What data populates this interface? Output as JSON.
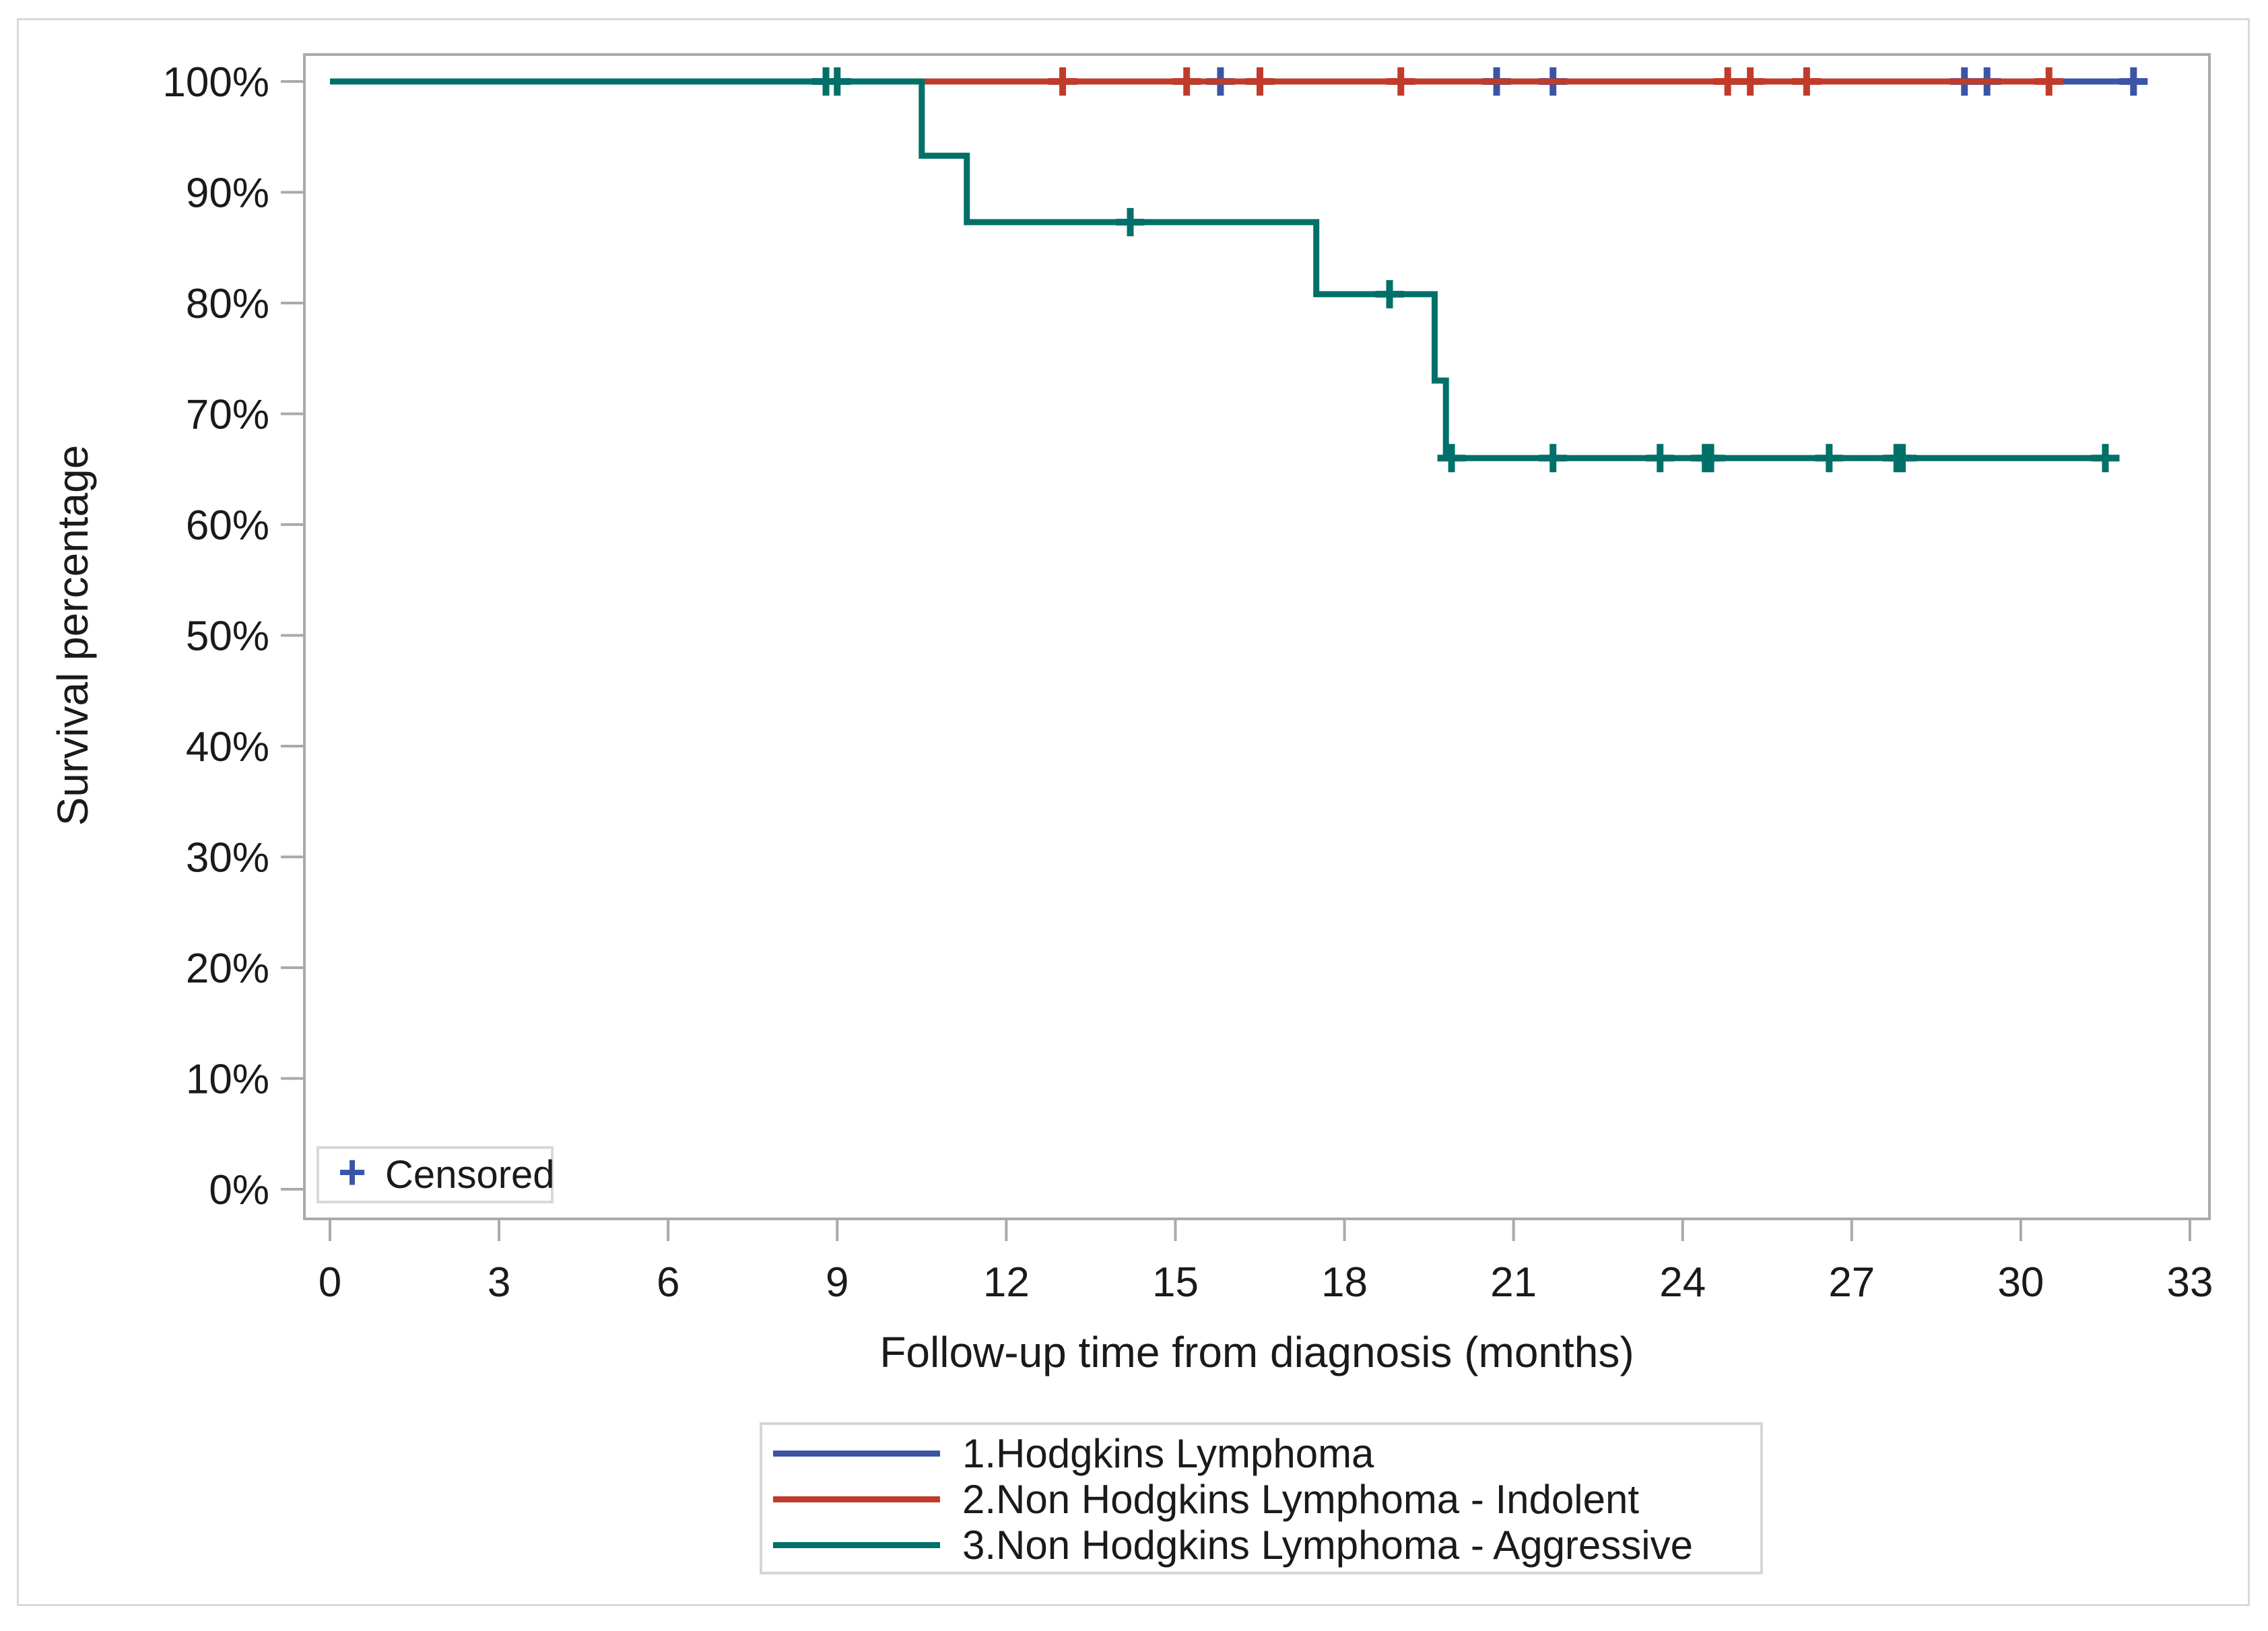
{
  "figure": {
    "background": "#ffffff",
    "outer_border_color": "#d9d9d9",
    "plot_border_color": "#a6abad",
    "tick_color": "#a6abad",
    "text_color": "#1a1a1a"
  },
  "y_axis": {
    "title": "Survival percentage",
    "tick_labels": [
      "100%",
      "90%",
      "80%",
      "70%",
      "60%",
      "50%",
      "40%",
      "30%",
      "20%",
      "10%",
      "0%"
    ],
    "tick_values": [
      100,
      90,
      80,
      70,
      60,
      50,
      40,
      30,
      20,
      10,
      0
    ],
    "min": 0,
    "max": 100
  },
  "x_axis": {
    "title": "Follow-up time from diagnosis (months)",
    "tick_labels": [
      "0",
      "3",
      "6",
      "9",
      "12",
      "15",
      "18",
      "21",
      "24",
      "27",
      "30",
      "33"
    ],
    "tick_values": [
      0,
      3,
      6,
      9,
      12,
      15,
      18,
      21,
      24,
      27,
      30,
      33
    ],
    "min": 0,
    "max": 33
  },
  "censored_legend": {
    "marker": "+",
    "marker_color": "#3b54a6",
    "label": "Censored"
  },
  "legend": {
    "position": "bottom-center",
    "entries": [
      {
        "label": "1.Hodgkins Lymphoma",
        "color": "#3b54a6"
      },
      {
        "label": "2.Non Hodgkins Lymphoma - Indolent",
        "color": "#c13b2b"
      },
      {
        "label": "3.Non Hodgkins Lymphoma - Aggressive",
        "color": "#007069"
      }
    ]
  },
  "chart_data": {
    "type": "line",
    "subtype": "kaplan-meier-step",
    "title": "",
    "xlabel": "Follow-up time from diagnosis (months)",
    "ylabel": "Survival percentage",
    "xlim": [
      0,
      33
    ],
    "ylim": [
      0,
      100
    ],
    "grid": false,
    "series": [
      {
        "name": "1.Hodgkins Lymphoma",
        "color": "#3b54a6",
        "steps": [
          {
            "t": 0,
            "s": 100
          },
          {
            "t": 32.0,
            "s": 100
          }
        ],
        "censored": [
          {
            "t": 15.8,
            "s": 100
          },
          {
            "t": 20.7,
            "s": 100
          },
          {
            "t": 21.7,
            "s": 100
          },
          {
            "t": 29.0,
            "s": 100
          },
          {
            "t": 29.4,
            "s": 100
          },
          {
            "t": 32.0,
            "s": 100
          }
        ]
      },
      {
        "name": "2.Non Hodgkins Lymphoma - Indolent",
        "color": "#c13b2b",
        "steps": [
          {
            "t": 0,
            "s": 100
          },
          {
            "t": 30.5,
            "s": 100
          }
        ],
        "censored": [
          {
            "t": 13.0,
            "s": 100
          },
          {
            "t": 15.2,
            "s": 100
          },
          {
            "t": 16.5,
            "s": 100
          },
          {
            "t": 19.0,
            "s": 100
          },
          {
            "t": 24.8,
            "s": 100
          },
          {
            "t": 25.2,
            "s": 100
          },
          {
            "t": 26.2,
            "s": 100
          },
          {
            "t": 30.5,
            "s": 100
          }
        ]
      },
      {
        "name": "3.Non Hodgkins Lymphoma - Aggressive",
        "color": "#007069",
        "steps": [
          {
            "t": 0,
            "s": 100
          },
          {
            "t": 10.5,
            "s": 93.3
          },
          {
            "t": 11.3,
            "s": 87.3
          },
          {
            "t": 17.5,
            "s": 80.8
          },
          {
            "t": 19.6,
            "s": 73.0
          },
          {
            "t": 19.8,
            "s": 66.0
          },
          {
            "t": 31.5,
            "s": 66.0
          }
        ],
        "censored": [
          {
            "t": 8.8,
            "s": 100
          },
          {
            "t": 9.0,
            "s": 100
          },
          {
            "t": 14.2,
            "s": 87.3
          },
          {
            "t": 18.8,
            "s": 80.8
          },
          {
            "t": 19.9,
            "s": 66.0
          },
          {
            "t": 21.7,
            "s": 66.0
          },
          {
            "t": 23.6,
            "s": 66.0
          },
          {
            "t": 24.4,
            "s": 66.0
          },
          {
            "t": 24.5,
            "s": 66.0
          },
          {
            "t": 26.6,
            "s": 66.0
          },
          {
            "t": 27.8,
            "s": 66.0
          },
          {
            "t": 27.9,
            "s": 66.0
          },
          {
            "t": 31.5,
            "s": 66.0
          }
        ]
      }
    ]
  }
}
